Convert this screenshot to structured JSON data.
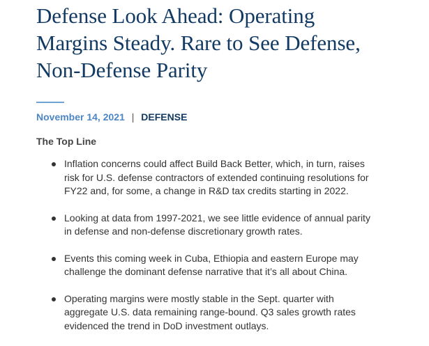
{
  "article": {
    "title_lines": [
      "Defense Look Ahead: Operating",
      "Margins Steady. Rare to See Defense,",
      "Non-Defense Parity"
    ],
    "date": "November 14, 2021",
    "separator": "|",
    "category": "DEFENSE",
    "section_heading": "The Top Line",
    "bullets": [
      {
        "lines": [
          "Inflation concerns could affect Build Back Better, which, in turn, raises",
          "risk for U.S. defense contractors of extended continuing resolutions for",
          "FY22 and, for some, a change in R&D tax credits starting in 2022."
        ]
      },
      {
        "lines": [
          "Looking at data from 1997-2021, we see little evidence of annual parity",
          "in defense and non-defense discretionary growth rates."
        ]
      },
      {
        "lines": [
          "Events this coming week in Cuba, Ethiopia and eastern Europe may",
          "challenge the dominant defense narrative that it’s all about China."
        ]
      },
      {
        "lines": [
          "Operating margins were mostly stable in the Sept. quarter with",
          "aggregate U.S. data remaining range-bound. Q3 sales growth rates",
          "evidenced the trend in DoD investment outlays."
        ]
      }
    ]
  },
  "colors": {
    "title": "#123a63",
    "accent_rule": "#6fa3d3",
    "date": "#4d86c4",
    "category": "#123a63",
    "body_text": "#333333"
  }
}
